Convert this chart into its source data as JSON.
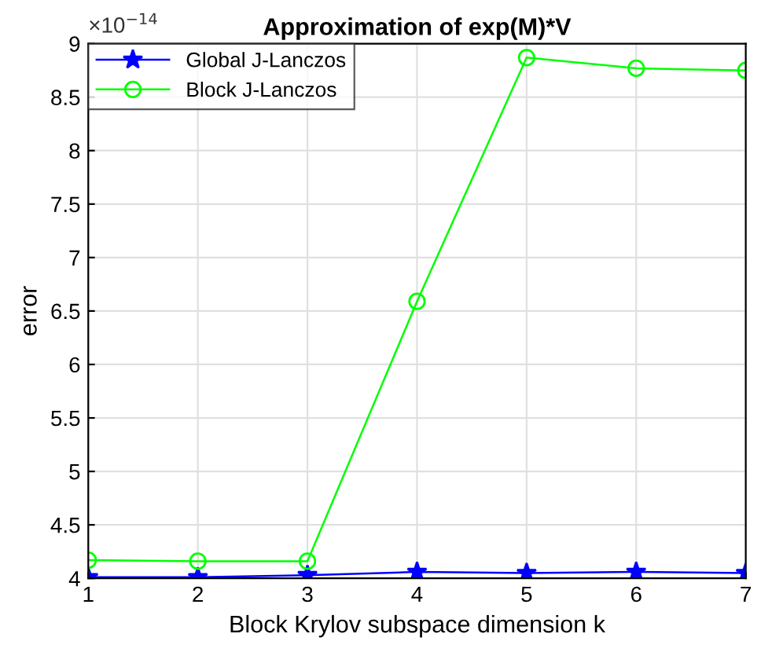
{
  "chart_data": {
    "type": "line",
    "title": "Approximation of exp(M)*V",
    "xlabel": "Block Krylov subspace dimension k",
    "ylabel": "error",
    "annotations": [
      "×10$^{−14}$"
    ],
    "x": [
      1,
      2,
      3,
      4,
      5,
      6,
      7
    ],
    "series": [
      {
        "name": "Global J-Lanczos",
        "color": "#0000ff",
        "marker": "star",
        "values": [
          4.01,
          4.01,
          4.03,
          4.06,
          4.05,
          4.06,
          4.05
        ]
      },
      {
        "name": "Block J-Lanczos",
        "color": "#00ff00",
        "marker": "circle",
        "values": [
          4.17,
          4.16,
          4.16,
          6.59,
          8.87,
          8.77,
          8.75
        ]
      }
    ],
    "xlim": [
      1,
      7
    ],
    "xticks": [
      1,
      2,
      3,
      4,
      5,
      6,
      7
    ],
    "ylim": [
      4,
      9
    ],
    "yticks": [
      4,
      4.5,
      5,
      5.5,
      6,
      6.5,
      7,
      7.5,
      8,
      8.5,
      9
    ],
    "grid": true,
    "legend": "top left"
  }
}
